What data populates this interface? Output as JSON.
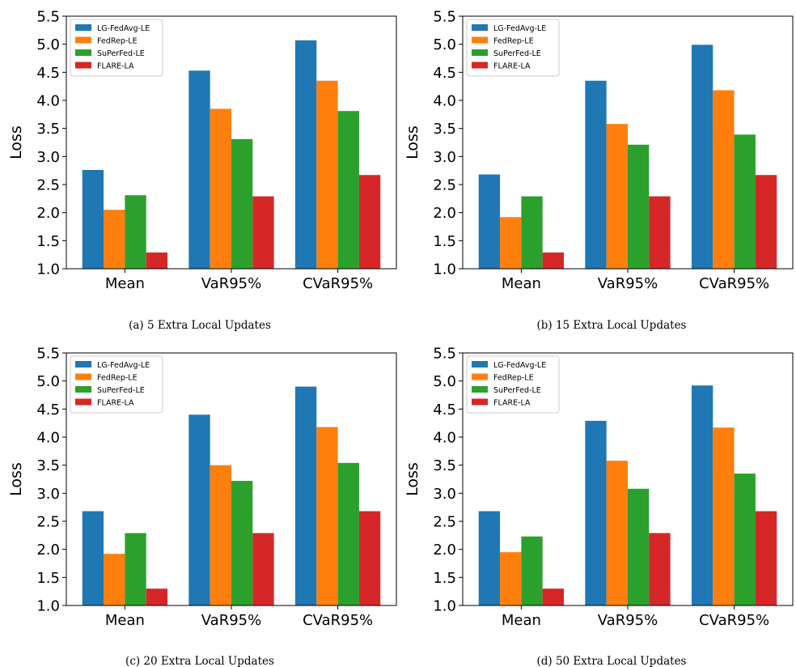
{
  "chart_data": [
    {
      "type": "bar",
      "caption": "(a) 5 Extra Local Updates",
      "ylabel": "Loss",
      "ylim": [
        1.0,
        5.5
      ],
      "yticks": [
        "1.0",
        "1.5",
        "2.0",
        "2.5",
        "3.0",
        "3.5",
        "4.0",
        "4.5",
        "5.0",
        "5.5"
      ],
      "categories": [
        "Mean",
        "VaR95%",
        "CVaR95%"
      ],
      "legend_position": "upper-left",
      "series": [
        {
          "name": "LG-FedAvg-LE",
          "color": "#1f77b4",
          "values": [
            2.76,
            4.53,
            5.07
          ]
        },
        {
          "name": "FedRep-LE",
          "color": "#ff7f0e",
          "values": [
            2.05,
            3.85,
            4.35
          ]
        },
        {
          "name": "SuPerFed-LE",
          "color": "#2ca02c",
          "values": [
            2.31,
            3.31,
            3.81
          ]
        },
        {
          "name": "FLARE-LA",
          "color": "#d62728",
          "values": [
            1.29,
            2.29,
            2.67
          ]
        }
      ]
    },
    {
      "type": "bar",
      "caption": "(b) 15 Extra Local Updates",
      "ylabel": "Loss",
      "ylim": [
        1.0,
        5.5
      ],
      "yticks": [
        "1.0",
        "1.5",
        "2.0",
        "2.5",
        "3.0",
        "3.5",
        "4.0",
        "4.5",
        "5.0",
        "5.5"
      ],
      "categories": [
        "Mean",
        "VaR95%",
        "CVaR95%"
      ],
      "legend_position": "upper-left",
      "series": [
        {
          "name": "LG-FedAvg-LE",
          "color": "#1f77b4",
          "values": [
            2.68,
            4.35,
            4.99
          ]
        },
        {
          "name": "FedRep-LE",
          "color": "#ff7f0e",
          "values": [
            1.92,
            3.58,
            4.18
          ]
        },
        {
          "name": "SuPerFed-LE",
          "color": "#2ca02c",
          "values": [
            2.29,
            3.21,
            3.39
          ]
        },
        {
          "name": "FLARE-LA",
          "color": "#d62728",
          "values": [
            1.29,
            2.29,
            2.67
          ]
        }
      ]
    },
    {
      "type": "bar",
      "caption": "(c) 20 Extra Local Updates",
      "ylabel": "Loss",
      "ylim": [
        1.0,
        5.5
      ],
      "yticks": [
        "1.0",
        "1.5",
        "2.0",
        "2.5",
        "3.0",
        "3.5",
        "4.0",
        "4.5",
        "5.0",
        "5.5"
      ],
      "categories": [
        "Mean",
        "VaR95%",
        "CVaR95%"
      ],
      "legend_position": "upper-left",
      "series": [
        {
          "name": "LG-FedAvg-LE",
          "color": "#1f77b4",
          "values": [
            2.68,
            4.4,
            4.9
          ]
        },
        {
          "name": "FedRep-LE",
          "color": "#ff7f0e",
          "values": [
            1.92,
            3.5,
            4.18
          ]
        },
        {
          "name": "SuPerFed-LE",
          "color": "#2ca02c",
          "values": [
            2.29,
            3.22,
            3.54
          ]
        },
        {
          "name": "FLARE-LA",
          "color": "#d62728",
          "values": [
            1.3,
            2.29,
            2.68
          ]
        }
      ]
    },
    {
      "type": "bar",
      "caption": "(d) 50 Extra Local Updates",
      "ylabel": "Loss",
      "ylim": [
        1.0,
        5.5
      ],
      "yticks": [
        "1.0",
        "1.5",
        "2.0",
        "2.5",
        "3.0",
        "3.5",
        "4.0",
        "4.5",
        "5.0",
        "5.5"
      ],
      "categories": [
        "Mean",
        "VaR95%",
        "CVaR95%"
      ],
      "legend_position": "upper-left",
      "series": [
        {
          "name": "LG-FedAvg-LE",
          "color": "#1f77b4",
          "values": [
            2.68,
            4.29,
            4.92
          ]
        },
        {
          "name": "FedRep-LE",
          "color": "#ff7f0e",
          "values": [
            1.95,
            3.58,
            4.17
          ]
        },
        {
          "name": "SuPerFed-LE",
          "color": "#2ca02c",
          "values": [
            2.23,
            3.08,
            3.35
          ]
        },
        {
          "name": "FLARE-LA",
          "color": "#d62728",
          "values": [
            1.3,
            2.29,
            2.68
          ]
        }
      ]
    }
  ]
}
